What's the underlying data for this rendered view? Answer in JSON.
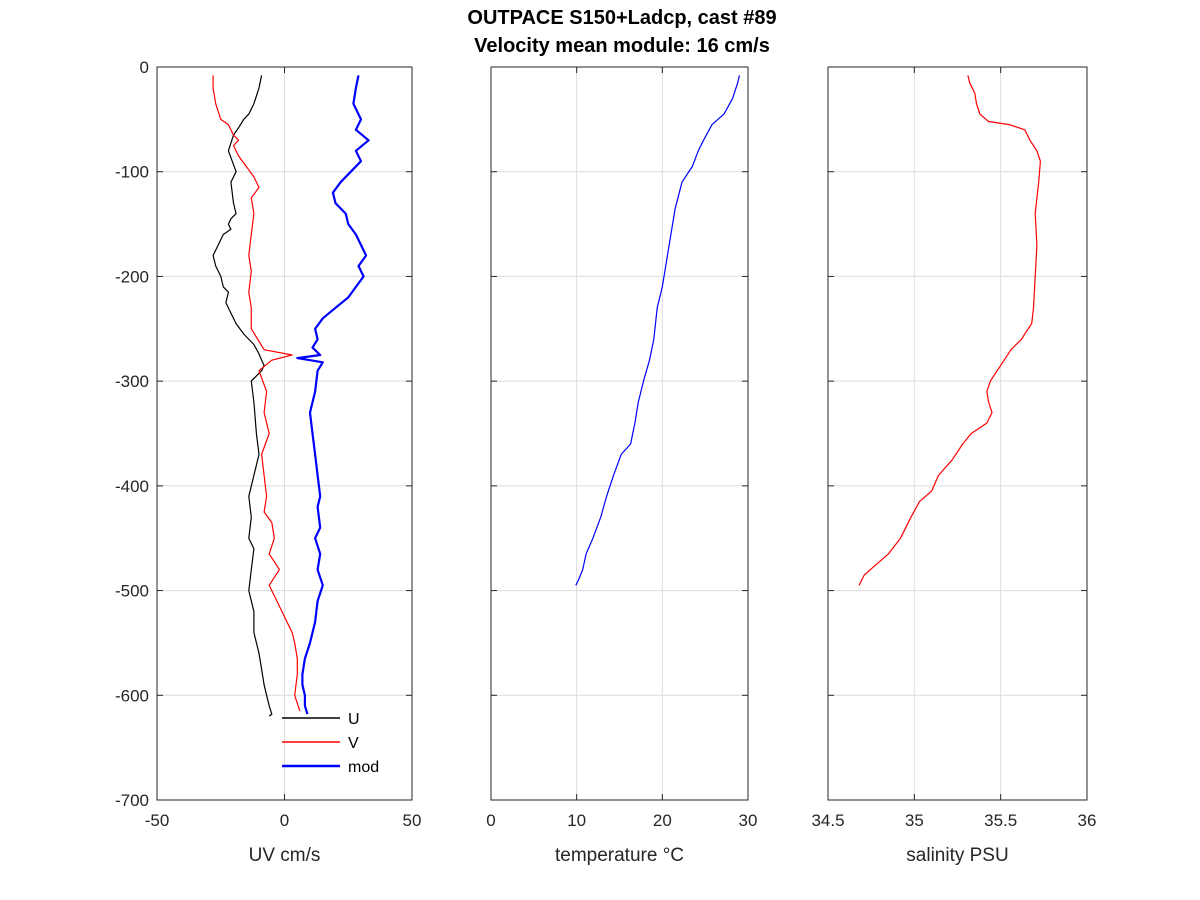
{
  "title_line1": "OUTPACE S150+Ladcp, cast #89",
  "title_line2": "Velocity mean module:  16 cm/s",
  "chart_data": [
    {
      "type": "line",
      "xlabel": "UV cm/s",
      "ylabel": "",
      "xlim": [
        -50,
        50
      ],
      "ylim": [
        -700,
        0
      ],
      "xticks": [
        -50,
        0,
        50
      ],
      "yticks": [
        0,
        -100,
        -200,
        -300,
        -400,
        -500,
        -600,
        -700
      ],
      "grid": true,
      "legend_position": "bottom-right",
      "series": [
        {
          "name": "U",
          "color": "#000000",
          "x": [
            -9,
            -10,
            -12,
            -14,
            -16,
            -18,
            -20,
            -22,
            -19,
            -21,
            -20,
            -19,
            -21,
            -22,
            -21,
            -24,
            -26,
            -28,
            -27,
            -25,
            -24,
            -22,
            -23,
            -21,
            -19,
            -16,
            -12,
            -10,
            -9,
            -8,
            -9,
            -13,
            -12,
            -11,
            -10,
            -12,
            -14,
            -13,
            -14,
            -12,
            -13,
            -14,
            -12,
            -12,
            -10,
            -9,
            -8,
            -7,
            -6,
            -5,
            -6
          ],
          "y": [
            -8,
            -20,
            -35,
            -45,
            -50,
            -58,
            -65,
            -80,
            -100,
            -110,
            -130,
            -140,
            -145,
            -150,
            -155,
            -160,
            -170,
            -180,
            -190,
            -200,
            -210,
            -215,
            -225,
            -235,
            -245,
            -255,
            -265,
            -274,
            -280,
            -285,
            -290,
            -300,
            -320,
            -350,
            -370,
            -390,
            -410,
            -430,
            -450,
            -460,
            -480,
            -500,
            -520,
            -540,
            -560,
            -575,
            -590,
            -600,
            -610,
            -618,
            -620
          ]
        },
        {
          "name": "V",
          "color": "#ff0000",
          "x": [
            -28,
            -28,
            -27,
            -25,
            -22,
            -20,
            -18,
            -20,
            -18,
            -15,
            -12,
            -10,
            -13,
            -12,
            -13,
            -14,
            -13,
            -14,
            -13,
            -13,
            -8,
            3,
            -5,
            -10,
            -7,
            -8,
            -6,
            -9,
            -8,
            -7,
            -8,
            -5,
            -4,
            -6,
            -2,
            -6,
            -4,
            -2,
            0,
            3,
            4,
            5,
            5,
            4,
            6
          ],
          "y": [
            -8,
            -20,
            -35,
            -50,
            -55,
            -65,
            -70,
            -75,
            -85,
            -95,
            -105,
            -115,
            -125,
            -140,
            -160,
            -180,
            -195,
            -215,
            -230,
            -250,
            -270,
            -275,
            -280,
            -290,
            -310,
            -330,
            -350,
            -370,
            -390,
            -410,
            -425,
            -435,
            -450,
            -465,
            -480,
            -495,
            -505,
            -515,
            -525,
            -540,
            -550,
            -565,
            -580,
            -600,
            -615
          ]
        },
        {
          "name": "mod",
          "color": "#0000ff",
          "x": [
            29,
            28,
            27,
            30,
            28,
            33,
            28,
            30,
            26,
            22,
            19,
            20,
            24,
            25,
            28,
            30,
            32,
            29,
            31,
            28,
            25,
            20,
            15,
            12,
            13,
            11,
            14,
            5,
            15,
            13,
            12,
            10,
            11,
            12,
            13,
            14,
            13,
            14,
            12,
            14,
            13,
            15,
            13,
            12,
            10,
            8,
            7,
            7,
            8,
            8,
            9
          ],
          "y": [
            -8,
            -20,
            -35,
            -50,
            -60,
            -70,
            -80,
            -90,
            -100,
            -110,
            -120,
            -130,
            -140,
            -150,
            -160,
            -170,
            -180,
            -190,
            -200,
            -210,
            -220,
            -230,
            -240,
            -250,
            -260,
            -268,
            -275,
            -278,
            -282,
            -290,
            -310,
            -330,
            -350,
            -370,
            -390,
            -410,
            -420,
            -440,
            -450,
            -465,
            -480,
            -495,
            -510,
            -530,
            -550,
            -565,
            -580,
            -590,
            -600,
            -610,
            -618
          ]
        }
      ]
    },
    {
      "type": "line",
      "xlabel": "temperature °C",
      "ylabel": "",
      "xlim": [
        0,
        30
      ],
      "ylim": [
        -700,
        0
      ],
      "xticks": [
        0,
        10,
        20,
        30
      ],
      "grid": true,
      "series": [
        {
          "name": "",
          "color": "#0000ff",
          "x": [
            29.0,
            28.8,
            28.2,
            27.2,
            25.8,
            24.8,
            24.2,
            23.5,
            22.3,
            21.5,
            20.9,
            20.5,
            20.0,
            19.4,
            19.0,
            18.5,
            17.8,
            17.2,
            16.8,
            16.3,
            15.2,
            14.3,
            13.5,
            12.8,
            11.9,
            11.1,
            10.7,
            10.2,
            9.9
          ],
          "y": [
            -8,
            -15,
            -30,
            -45,
            -55,
            -70,
            -80,
            -95,
            -110,
            -135,
            -165,
            -185,
            -210,
            -230,
            -260,
            -280,
            -300,
            -320,
            -340,
            -360,
            -370,
            -390,
            -410,
            -430,
            -450,
            -465,
            -480,
            -490,
            -495
          ]
        }
      ]
    },
    {
      "type": "line",
      "xlabel": "salinity PSU",
      "ylabel": "",
      "xlim": [
        34.5,
        36
      ],
      "ylim": [
        -700,
        0
      ],
      "xticks": [
        34.5,
        35,
        35.5,
        36
      ],
      "grid": true,
      "series": [
        {
          "name": "",
          "color": "#ff0000",
          "x": [
            35.31,
            35.32,
            35.35,
            35.36,
            35.38,
            35.43,
            35.55,
            35.64,
            35.67,
            35.71,
            35.73,
            35.72,
            35.7,
            35.71,
            35.7,
            35.69,
            35.68,
            35.64,
            35.62,
            35.56,
            35.5,
            35.44,
            35.42,
            35.43,
            35.45,
            35.42,
            35.33,
            35.28,
            35.22,
            35.14,
            35.1,
            35.03,
            34.98,
            34.92,
            34.85,
            34.78,
            34.71,
            34.68
          ],
          "y": [
            -8,
            -15,
            -25,
            -35,
            -45,
            -52,
            -55,
            -60,
            -70,
            -80,
            -90,
            -110,
            -140,
            -170,
            -200,
            -230,
            -245,
            -255,
            -260,
            -270,
            -285,
            -300,
            -310,
            -320,
            -330,
            -340,
            -350,
            -360,
            -375,
            -390,
            -405,
            -415,
            -430,
            -450,
            -465,
            -475,
            -485,
            -495
          ]
        }
      ]
    }
  ]
}
